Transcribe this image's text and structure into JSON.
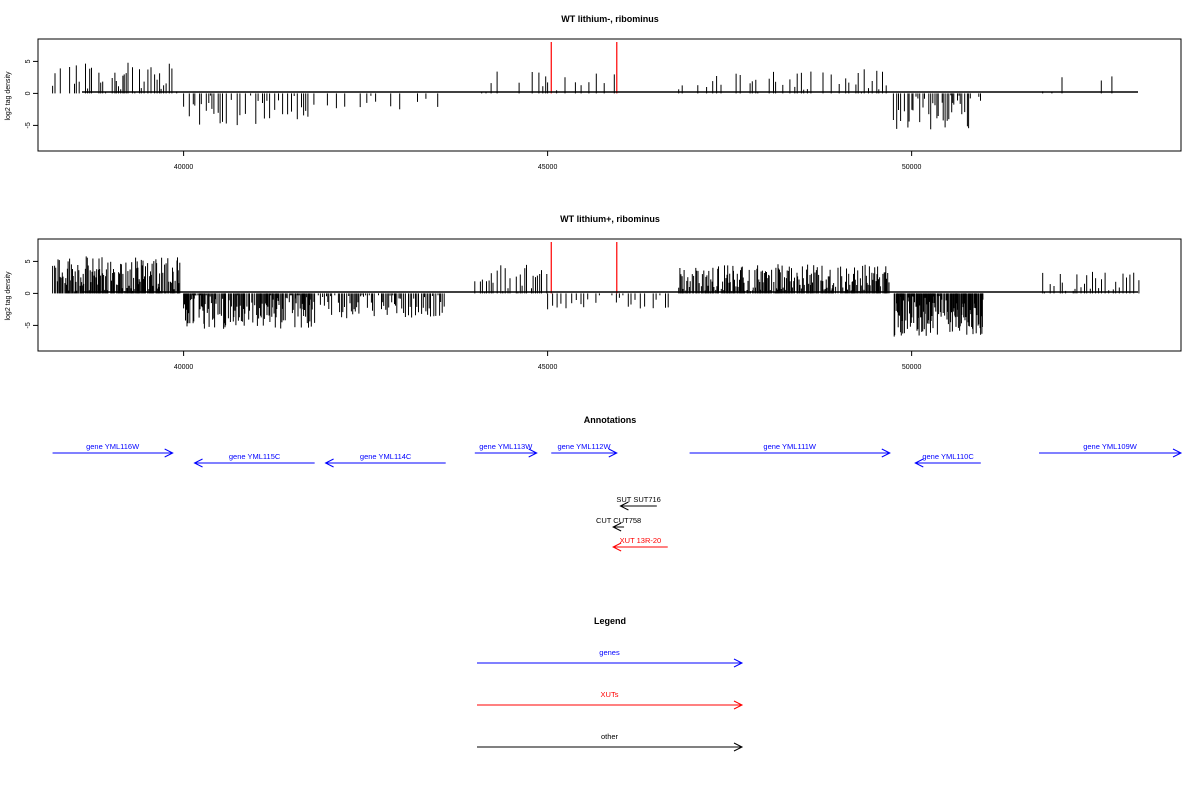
{
  "colors": {
    "gene": "#0000ff",
    "xut": "#ff0000",
    "other": "#000000",
    "marker": "#ff0000",
    "bar": "#000000"
  },
  "chart_data": [
    {
      "type": "bar",
      "title": "WT lithium-, ribominus",
      "ylabel": "log2 tag density",
      "xlim": [
        38000,
        53700
      ],
      "ylim": [
        -9,
        8.5
      ],
      "yticks": [
        -5,
        0,
        5
      ],
      "ytick_labels": [
        "-5",
        "0",
        "5"
      ],
      "xticks": [
        40000,
        45000,
        50000
      ],
      "xtick_labels": [
        "40000",
        "45000",
        "50000"
      ],
      "markers": [
        45050,
        45950
      ],
      "data_range": [
        38200,
        53200
      ],
      "density": "sparse",
      "segments": [
        {
          "from": 38200,
          "to": 39950,
          "sign": 1,
          "mean": 2.2,
          "amp": 2.6,
          "step": 30
        },
        {
          "from": 40000,
          "to": 41800,
          "sign": -1,
          "mean": 2.6,
          "amp": 2.4,
          "step": 30
        },
        {
          "from": 41850,
          "to": 43600,
          "sign": -1,
          "mean": 1.6,
          "amp": 1.6,
          "step": 90
        },
        {
          "from": 44000,
          "to": 45000,
          "sign": 1,
          "mean": 2.0,
          "amp": 2.2,
          "step": 60
        },
        {
          "from": 45000,
          "to": 45950,
          "sign": 1,
          "mean": 1.8,
          "amp": 1.4,
          "step": 110
        },
        {
          "from": 46800,
          "to": 49700,
          "sign": 1,
          "mean": 2.0,
          "amp": 1.8,
          "step": 45
        },
        {
          "from": 49750,
          "to": 50950,
          "sign": -1,
          "mean": 3.0,
          "amp": 2.8,
          "step": 22
        },
        {
          "from": 51800,
          "to": 53150,
          "sign": 1,
          "mean": 1.5,
          "amp": 1.5,
          "step": 130
        }
      ]
    },
    {
      "type": "bar",
      "title": "WT lithium+, ribominus",
      "ylabel": "log2 tag density",
      "xlim": [
        38000,
        53700
      ],
      "ylim": [
        -9,
        8.5
      ],
      "yticks": [
        -5,
        0,
        5
      ],
      "ytick_labels": [
        "-5",
        "0",
        "5"
      ],
      "xticks": [
        40000,
        45000,
        50000
      ],
      "xtick_labels": [
        "40000",
        "45000",
        "50000"
      ],
      "markers": [
        45050,
        45950
      ],
      "data_range": [
        38200,
        53200
      ],
      "density": "dense",
      "segments": [
        {
          "from": 38200,
          "to": 39950,
          "sign": 1,
          "mean": 3.0,
          "amp": 2.8,
          "step": 12
        },
        {
          "from": 40000,
          "to": 41800,
          "sign": -1,
          "mean": 2.8,
          "amp": 2.8,
          "step": 12
        },
        {
          "from": 41850,
          "to": 43600,
          "sign": -1,
          "mean": 2.0,
          "amp": 2.0,
          "step": 22
        },
        {
          "from": 44000,
          "to": 45000,
          "sign": 1,
          "mean": 2.0,
          "amp": 2.5,
          "step": 35
        },
        {
          "from": 45000,
          "to": 46700,
          "sign": -1,
          "mean": 1.4,
          "amp": 1.4,
          "step": 60
        },
        {
          "from": 46800,
          "to": 49700,
          "sign": 1,
          "mean": 2.4,
          "amp": 2.2,
          "step": 14
        },
        {
          "from": 49750,
          "to": 51000,
          "sign": -1,
          "mean": 3.6,
          "amp": 3.2,
          "step": 9
        },
        {
          "from": 51800,
          "to": 53150,
          "sign": 1,
          "mean": 1.8,
          "amp": 1.6,
          "step": 40
        }
      ]
    }
  ],
  "annotations": {
    "title": "Annotations",
    "features": [
      {
        "label": "gene YML116W",
        "category": "gene",
        "start": 38200,
        "end": 39850,
        "strand": "+",
        "row": 1
      },
      {
        "label": "gene YML115C",
        "category": "gene",
        "start": 40150,
        "end": 41800,
        "strand": "-",
        "row": 2
      },
      {
        "label": "gene YML114C",
        "category": "gene",
        "start": 41950,
        "end": 43600,
        "strand": "-",
        "row": 2
      },
      {
        "label": "gene YML113W",
        "category": "gene",
        "start": 44000,
        "end": 44850,
        "strand": "+",
        "row": 1
      },
      {
        "label": "gene YML112W",
        "category": "gene",
        "start": 45050,
        "end": 45950,
        "strand": "+",
        "row": 1
      },
      {
        "label": "gene YML111W",
        "category": "gene",
        "start": 46950,
        "end": 49700,
        "strand": "+",
        "row": 1
      },
      {
        "label": "gene YML110C",
        "category": "gene",
        "start": 50050,
        "end": 50950,
        "strand": "-",
        "row": 2
      },
      {
        "label": "gene YML109W",
        "category": "gene",
        "start": 51750,
        "end": 53700,
        "strand": "+",
        "row": 1
      },
      {
        "label": "SUT SUT716",
        "category": "other",
        "start": 46000,
        "end": 46500,
        "strand": "-",
        "row": 3
      },
      {
        "label": "CUT CUT758",
        "category": "other",
        "start": 45900,
        "end": 46050,
        "strand": "-",
        "row": 4
      },
      {
        "label": "XUT 13R-20",
        "category": "xut",
        "start": 45900,
        "end": 46650,
        "strand": "-",
        "row": 5
      }
    ]
  },
  "legend": {
    "title": "Legend",
    "items": [
      {
        "label": "genes",
        "category": "gene"
      },
      {
        "label": "XUTs",
        "category": "xut"
      },
      {
        "label": "other",
        "category": "other"
      }
    ]
  }
}
